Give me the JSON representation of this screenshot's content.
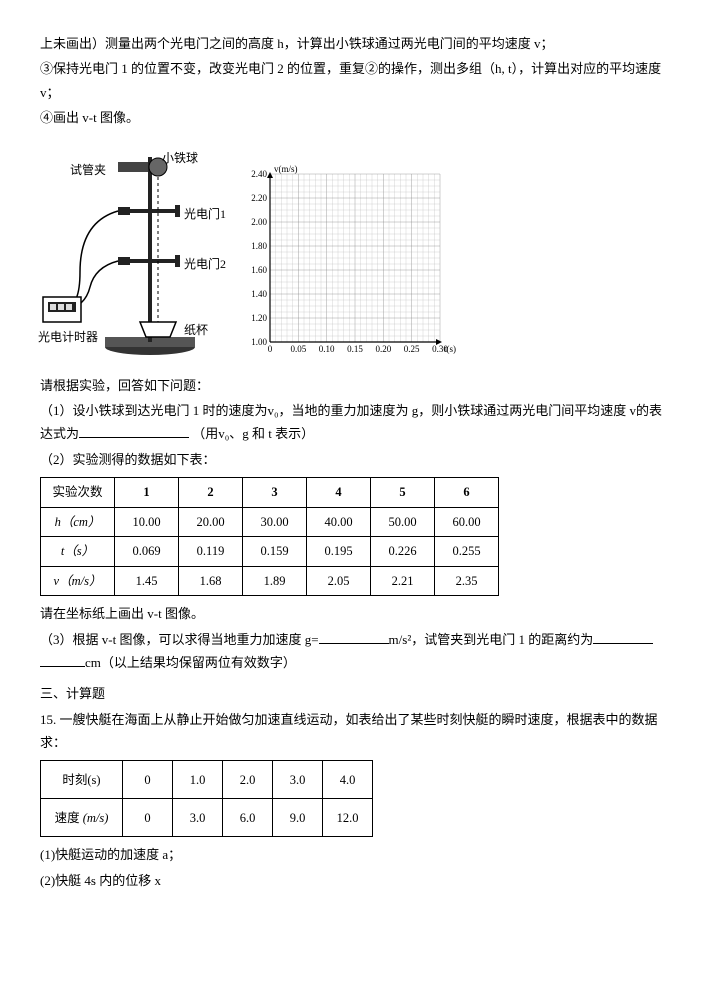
{
  "intro": {
    "line1": "上未画出）测量出两个光电门之间的高度 h，计算出小铁球通过两光电门间的平均速度 v；",
    "line2": "③保持光电门 1 的位置不变，改变光电门 2 的位置，重复②的操作，测出多组（h, t），计算出对应的平均速度 v；",
    "line3": "④画出 v-t 图像。"
  },
  "apparatus": {
    "labels": {
      "ball": "小铁球",
      "clamp": "试管夹",
      "gate1": "光电门1",
      "gate2": "光电门2",
      "cup": "纸杯",
      "timer": "光电计时器"
    }
  },
  "chart": {
    "ylabel": "v(m/s)",
    "xlabel": "t(s)",
    "ylim": [
      1.0,
      2.4
    ],
    "xlim": [
      0,
      0.3
    ],
    "yticks": [
      "1.00",
      "1.20",
      "1.40",
      "1.60",
      "1.80",
      "2.00",
      "2.20",
      "2.40"
    ],
    "xticks": [
      "0",
      "0.05",
      "0.10",
      "0.15",
      "0.20",
      "0.25",
      "0.30"
    ],
    "grid_color": "#777",
    "bg_color": "#ffffff"
  },
  "prompt1": "请根据实验，回答如下问题：",
  "q1": {
    "part1": "（1）设小铁球到达光电门 1 时的速度为v₀，当地的重力加速度为 g，则小铁球通过两光电门间平均速度 v的表达式为",
    "part2": "（用v₀、g 和 t 表示）"
  },
  "q2": "（2）实验测得的数据如下表：",
  "table1": {
    "headers": [
      "实验次数",
      "1",
      "2",
      "3",
      "4",
      "5",
      "6"
    ],
    "rows": [
      [
        "h（cm）",
        "10.00",
        "20.00",
        "30.00",
        "40.00",
        "50.00",
        "60.00"
      ],
      [
        "t（s）",
        "0.069",
        "0.119",
        "0.159",
        "0.195",
        "0.226",
        "0.255"
      ],
      [
        "v（m/s）",
        "1.45",
        "1.68",
        "1.89",
        "2.05",
        "2.21",
        "2.35"
      ]
    ]
  },
  "q2b": "请在坐标纸上画出 v-t 图像。",
  "q3": {
    "part1": "（3）根据 v-t 图像，可以求得当地重力加速度 g=",
    "unit": "m/s²，试管夹到光电门 1 的距离约为",
    "part2": "cm（以上结果均保留两位有效数字）"
  },
  "section3": "三、计算题",
  "q15": "15.  一艘快艇在海面上从静止开始做匀加速直线运动，如表给出了某些时刻快艇的瞬时速度，根据表中的数据求：",
  "table2": {
    "row1": [
      "时刻(s)",
      "0",
      "1.0",
      "2.0",
      "3.0",
      "4.0"
    ],
    "row2_label": "速度",
    "row2_unit": "(m/s)",
    "row2": [
      "0",
      "3.0",
      "6.0",
      "9.0",
      "12.0"
    ]
  },
  "sub1": "(1)快艇运动的加速度 a；",
  "sub2": "(2)快艇 4s 内的位移 x"
}
